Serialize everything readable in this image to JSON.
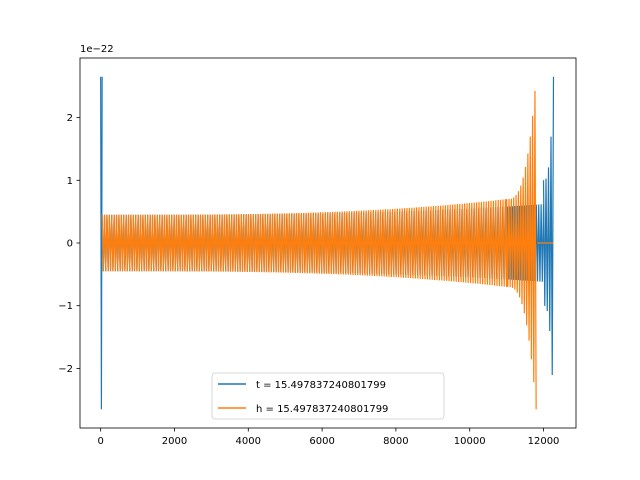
{
  "chart_data": {
    "type": "line",
    "title": "",
    "xlabel": "",
    "ylabel": "",
    "xlim": [
      -560,
      12880
    ],
    "ylim": [
      -2.95,
      2.95
    ],
    "y_scale_label": "1e−22",
    "xticks": [
      0,
      2000,
      4000,
      6000,
      8000,
      10000,
      12000
    ],
    "xtick_labels": [
      "0",
      "2000",
      "4000",
      "6000",
      "8000",
      "10000",
      "12000"
    ],
    "yticks": [
      -2,
      -1,
      0,
      1,
      2
    ],
    "ytick_labels": [
      "−2",
      "−1",
      "0",
      "1",
      "2"
    ],
    "grid": false,
    "legend_position": "lower center",
    "series": [
      {
        "name": "t = 15.497837240801799",
        "color": "#1f77b4",
        "segments": [
          {
            "x": [
              0,
              40
            ],
            "amplitude": [
              2.65,
              2.65
            ]
          },
          {
            "x": [
              40,
              12000
            ],
            "amplitude": [
              0.45,
              0.62
            ]
          },
          {
            "x": [
              12000,
              12270
            ],
            "amplitude": [
              1.0,
              2.65
            ]
          }
        ]
      },
      {
        "name": "h = 15.497837240801799",
        "color": "#ff7f0e",
        "segments": [
          {
            "x": [
              40,
              11000
            ],
            "amplitude": [
              0.45,
              0.7
            ]
          },
          {
            "x": [
              11000,
              11800
            ],
            "amplitude": [
              0.7,
              2.65
            ]
          },
          {
            "x": [
              11830,
              12270
            ],
            "amplitude": [
              0.0,
              0.0
            ]
          }
        ]
      }
    ]
  },
  "legend": {
    "entries": [
      {
        "label": "t = 15.497837240801799",
        "color": "#1f77b4"
      },
      {
        "label": "h = 15.497837240801799",
        "color": "#ff7f0e"
      }
    ]
  }
}
